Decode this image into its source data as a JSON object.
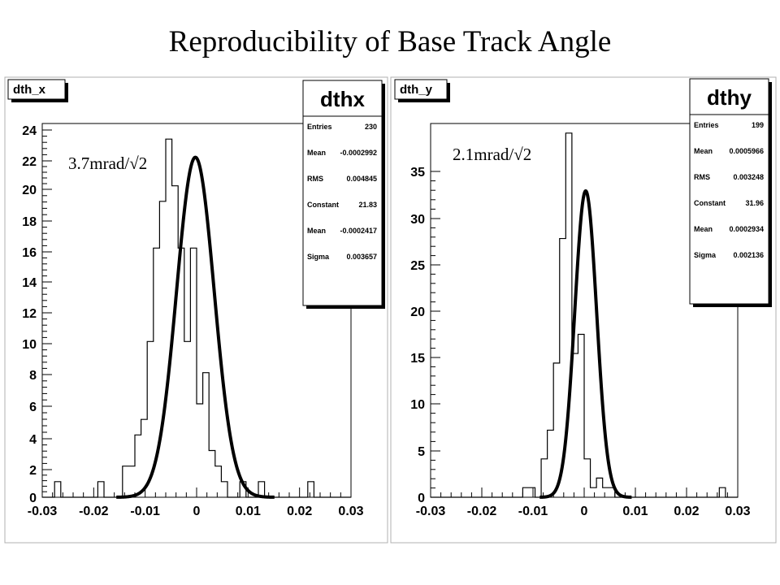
{
  "slide_title": "Reproducibility of Base Track Angle",
  "chart_data": [
    {
      "type": "histogram",
      "name_box": "dth_x",
      "annotation": "3.7mrad/√2",
      "x_ticks": [
        "-0.03",
        "-0.02",
        "-0.01",
        "0",
        "0.01",
        "0.02",
        "0.03"
      ],
      "y_ticks": [
        "0",
        "2",
        "4",
        "6",
        "8",
        "10",
        "12",
        "14",
        "16",
        "18",
        "20",
        "22",
        "24"
      ],
      "xlim": [
        -0.03,
        0.03
      ],
      "ylim": [
        0,
        24
      ],
      "bin_width": 0.0012,
      "counts": [
        0,
        0,
        1,
        0,
        0,
        0,
        0,
        0,
        0,
        1,
        0,
        0,
        0,
        2,
        2,
        4,
        5,
        10,
        16,
        19,
        23,
        20,
        16,
        10,
        16,
        6,
        8,
        3,
        2,
        1,
        0,
        0,
        1,
        0,
        0,
        1,
        0,
        0,
        0,
        0,
        0,
        0,
        0,
        1,
        0,
        0,
        0,
        0,
        0,
        0
      ],
      "fit": {
        "constant": 21.83,
        "mean": -0.0002417,
        "sigma": 0.003657
      },
      "stats": {
        "title": "dthx",
        "rows": [
          {
            "key": "Entries",
            "value": "230"
          },
          {
            "key": "Mean",
            "value": "-0.0002992"
          },
          {
            "key": "RMS",
            "value": "0.004845"
          },
          {
            "key": "Constant",
            "value": "21.83"
          },
          {
            "key": "Mean",
            "value": "-0.0002417"
          },
          {
            "key": "Sigma",
            "value": "0.003657"
          }
        ]
      }
    },
    {
      "type": "histogram",
      "name_box": "dth_y",
      "annotation": "2.1mrad/√2",
      "x_ticks": [
        "-0.03",
        "-0.02",
        "-0.01",
        "0",
        "0.01",
        "0.02",
        "0.03"
      ],
      "y_ticks": [
        "0",
        "5",
        "10",
        "15",
        "20",
        "25",
        "30",
        "35"
      ],
      "xlim": [
        -0.03,
        0.03
      ],
      "ylim": [
        0,
        39
      ],
      "bin_width": 0.0012,
      "counts": [
        0,
        0,
        0,
        0,
        0,
        0,
        0,
        0,
        0,
        0,
        0,
        0,
        0,
        0,
        0,
        1,
        1,
        0,
        4,
        7,
        14,
        27,
        38,
        15,
        17,
        4,
        1,
        2,
        1,
        1,
        0,
        0,
        0,
        0,
        0,
        0,
        0,
        0,
        0,
        0,
        0,
        0,
        0,
        0,
        0,
        0,
        0,
        1,
        0,
        0
      ],
      "fit": {
        "constant": 31.96,
        "mean": 0.0002934,
        "sigma": 0.002136
      },
      "stats": {
        "title": "dthy",
        "rows": [
          {
            "key": "Entries",
            "value": "199"
          },
          {
            "key": "Mean",
            "value": "0.0005966"
          },
          {
            "key": "RMS",
            "value": "0.003248"
          },
          {
            "key": "Constant",
            "value": "31.96"
          },
          {
            "key": "Mean",
            "value": "0.0002934"
          },
          {
            "key": "Sigma",
            "value": "0.002136"
          }
        ]
      }
    }
  ]
}
